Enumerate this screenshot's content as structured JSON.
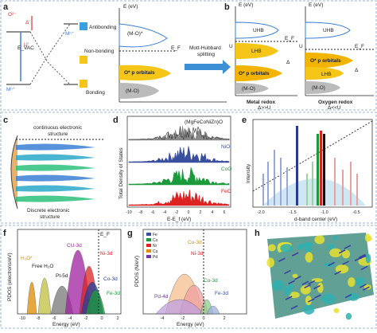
{
  "a": {
    "letter": "a",
    "axis": "E (eV)",
    "o2": "O²⁻",
    "delta": "Δ'",
    "u": "U'",
    "evac": "E_VAC",
    "mn_top": "Mⁿ⁺",
    "mn_left": "Mⁿ⁺",
    "antibonding": "Antibonding",
    "nonbonding": "Non-bonding",
    "bonding": "Bonding",
    "mo_star": "(M-O)*",
    "ef": "E_F",
    "op": "O* p orbitals",
    "mo": "(M-O)",
    "mott": "Mott-Hubbard",
    "splitting": "splitting"
  },
  "b": {
    "letter": "b",
    "axis1": "E (eV)",
    "axis2": "E (eV)",
    "uhb1": "UHB",
    "uhb2": "UHB",
    "ef1": "E_F",
    "ef2": "E_F",
    "lhb1": "LHB",
    "lhb2": "LHB",
    "u1": "U",
    "u2": "U",
    "d1": "Δ",
    "d2": "Δ",
    "op1": "O* p orbitals",
    "op2": "O* p orbitals",
    "mo1": "(M-O)",
    "mo2": "(M-O)",
    "metal": "Metal redox",
    "metal_cond": "Δ>>U",
    "oxygen": "Oxygen redox",
    "oxygen_cond": "Δ<<U"
  },
  "c": {
    "letter": "c",
    "cont1": "continuous electronic",
    "cont2": "structure",
    "disc1": "Discrete electronic",
    "disc2": "structure"
  },
  "d": {
    "letter": "d",
    "compound": "(MgFeCoNiZn)O",
    "nio": "NiO",
    "coo": "CoO",
    "feo": "FeO",
    "ylabel": "Total Density of States",
    "xlabel": "E-E_f (eV)",
    "xticks": [
      "-10",
      "-8",
      "-6",
      "-4",
      "-2",
      "0",
      "2",
      "4",
      "6"
    ]
  },
  "e": {
    "letter": "e",
    "ylabel": "Intensity",
    "xlabel": "d-band center (eV)",
    "xticks": [
      "-2.0",
      "-1.5",
      "-1.0",
      "-0.5"
    ]
  },
  "f": {
    "letter": "f",
    "ylabel": "PDOS (electrons/eV)",
    "xlabel": "Energy (eV)",
    "h2o": "H₂O*",
    "free": "Free H₂O",
    "pt": "Pt-5d",
    "cu": "CU-3d",
    "ni": "Ni-3d",
    "co": "Co-3d",
    "fe": "Fe-3d",
    "ef": "E_F",
    "xticks": [
      "-10",
      "-8",
      "-6",
      "-4",
      "-2",
      "0",
      "2"
    ]
  },
  "g": {
    "letter": "g",
    "ylabel": "PDOS (N/eV)",
    "xlabel": "Energy (eV)",
    "legend": [
      "Fe",
      "Co",
      "Ni",
      "Cu",
      "Pd"
    ],
    "co": "Co-3d",
    "ni": "Ni-3d",
    "cu": "Cu-3d",
    "fe": "Fe-3d",
    "pd": "Pd-4d",
    "xticks": [
      "-4",
      "-2",
      "0",
      "2"
    ]
  },
  "h": {
    "letter": "h"
  }
}
